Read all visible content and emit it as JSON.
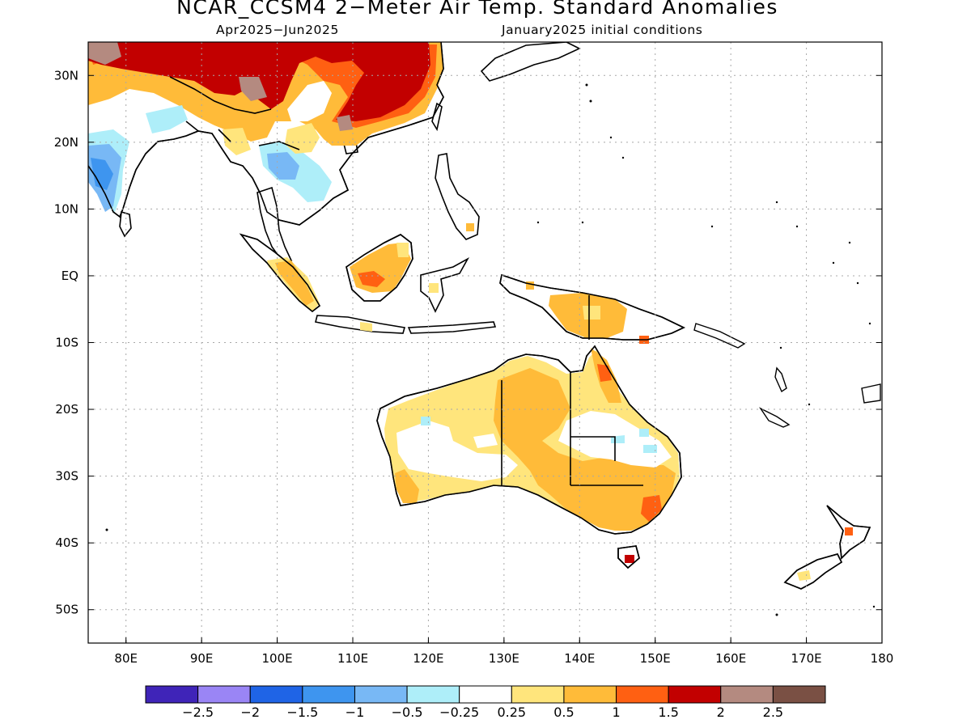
{
  "title": "NCAR_CCSM4 2−Meter Air Temp. Standard Anomalies",
  "period": "Apr2025−Jun2025",
  "init": "January2025 initial conditions",
  "map": {
    "lon_range": [
      75,
      180
    ],
    "lat_range": [
      -55,
      35
    ],
    "lon_ticks": [
      {
        "value": 80,
        "label": "80E"
      },
      {
        "value": 90,
        "label": "90E"
      },
      {
        "value": 100,
        "label": "100E"
      },
      {
        "value": 110,
        "label": "110E"
      },
      {
        "value": 120,
        "label": "120E"
      },
      {
        "value": 130,
        "label": "130E"
      },
      {
        "value": 140,
        "label": "140E"
      },
      {
        "value": 150,
        "label": "150E"
      },
      {
        "value": 160,
        "label": "160E"
      },
      {
        "value": 170,
        "label": "170E"
      },
      {
        "value": 180,
        "label": "180"
      }
    ],
    "lat_ticks": [
      {
        "value": 30,
        "label": "30N"
      },
      {
        "value": 20,
        "label": "20N"
      },
      {
        "value": 10,
        "label": "10N"
      },
      {
        "value": 0,
        "label": "EQ"
      },
      {
        "value": -10,
        "label": "10S"
      },
      {
        "value": -20,
        "label": "20S"
      },
      {
        "value": -30,
        "label": "30S"
      },
      {
        "value": -40,
        "label": "40S"
      },
      {
        "value": -50,
        "label": "50S"
      }
    ],
    "grid": "dotted"
  },
  "colorbar": {
    "colors": [
      "#3f24b8",
      "#9a85f5",
      "#1f64e6",
      "#3e95ef",
      "#78b8f5",
      "#aeeef9",
      "#ffffff",
      "#ffe57c",
      "#ffbb39",
      "#ff6012",
      "#c20000",
      "#b48a80",
      "#7a5044"
    ],
    "labels": [
      "−2.5",
      "−2",
      "−1.5",
      "−1",
      "−0.5",
      "−0.25",
      "0.25",
      "0.5",
      "1",
      "1.5",
      "2",
      "2.5"
    ]
  }
}
